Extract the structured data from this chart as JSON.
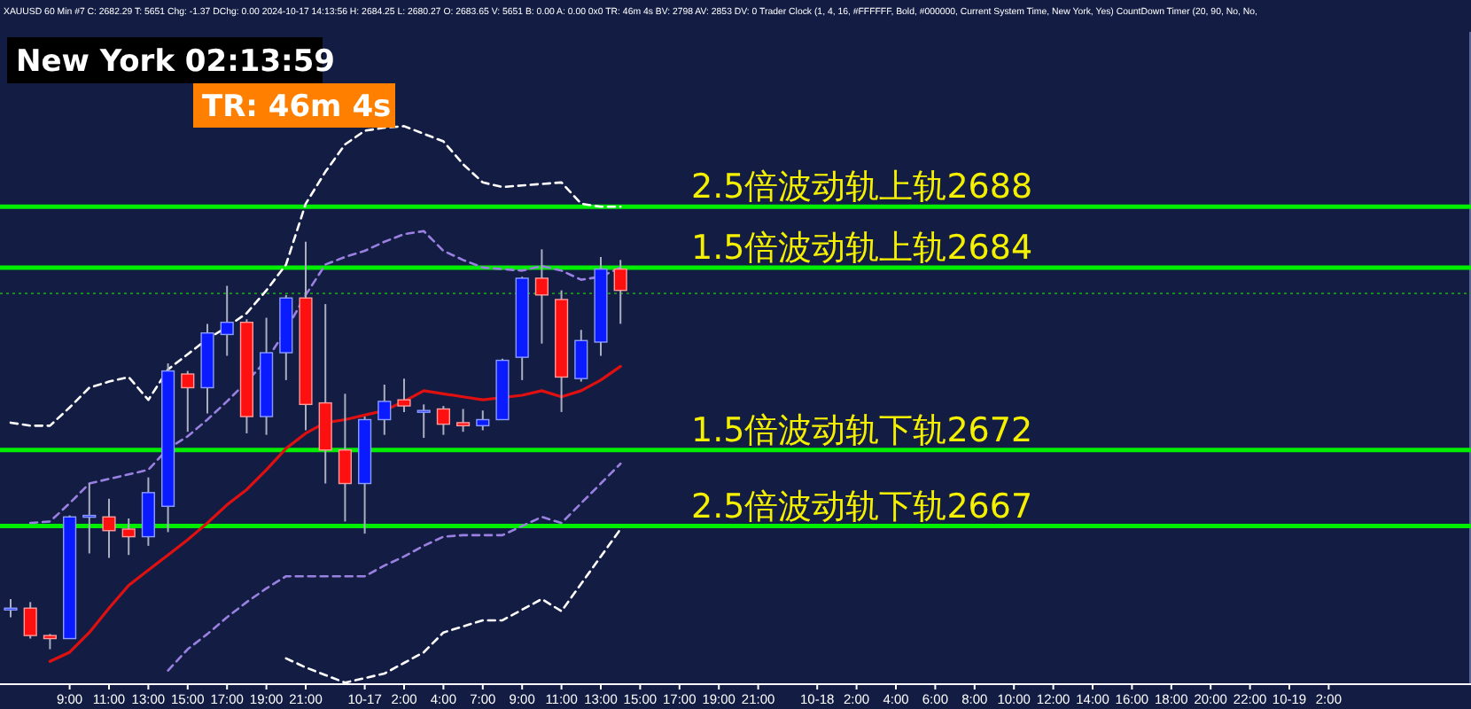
{
  "chart_data": {
    "type": "candlestick",
    "title": "XAUUSD  60 Min  #7 C: 2682.29 T: 5651 Chg: -1.37 DChg: 0.00 2024-10-17 14:13:56 H: 2684.25 L: 2680.27 O: 2683.65 V: 5651 B: 0.00 A: 0.00 0x0 TR: 46m 4s BV: 2798 AV: 2853 DV: 0 Trader Clock  (1, 4, 16, #FFFFFF, Bold, #000000, Current System Time, New York, Yes) CountDown Timer  (20, 90, No, No,",
    "annotations": [
      "New York 02:13:59",
      "TR: 46m 4s"
    ],
    "categories": [
      null,
      null,
      null,
      "9:00",
      null,
      "11:00",
      null,
      "13:00",
      null,
      "15:00",
      null,
      "17:00",
      null,
      "19:00",
      null,
      "21:00",
      null,
      null,
      "10-17",
      null,
      "2:00",
      null,
      "4:00",
      null,
      "7:00",
      null,
      "9:00",
      null,
      "11:00",
      null,
      "13:00",
      null,
      "15:00",
      null,
      "17:00",
      null,
      "19:00",
      null,
      "21:00",
      null,
      null,
      "10-18",
      null,
      "2:00",
      null,
      "4:00",
      null,
      "6:00",
      null,
      "8:00",
      null,
      "10:00",
      null,
      "12:00",
      null,
      "14:00",
      null,
      "16:00",
      null,
      "18:00",
      null,
      "20:00",
      null,
      "22:00",
      null,
      "10-19",
      null,
      "2:00",
      null,
      null,
      null,
      null,
      null,
      null,
      null
    ],
    "ohlc": [
      [
        2661.6,
        2662.2,
        2661.0,
        2661.6
      ],
      [
        2661.6,
        2662.0,
        2659.6,
        2659.8
      ],
      [
        2659.8,
        2659.9,
        2658.9,
        2659.6
      ],
      [
        2659.6,
        2667.7,
        2659.6,
        2667.6
      ],
      [
        2667.7,
        2669.8,
        2665.2,
        2667.7
      ],
      [
        2667.6,
        2668.8,
        2664.9,
        2666.7
      ],
      [
        2666.8,
        2667.5,
        2665.1,
        2666.3
      ],
      [
        2666.3,
        2670.2,
        2665.7,
        2669.2
      ],
      [
        2668.3,
        2677.7,
        2666.6,
        2677.2
      ],
      [
        2677.0,
        2677.2,
        2673.2,
        2676.1
      ],
      [
        2676.1,
        2680.3,
        2674.4,
        2679.7
      ],
      [
        2679.6,
        2682.8,
        2678.2,
        2680.4
      ],
      [
        2680.4,
        2680.6,
        2673.1,
        2674.2
      ],
      [
        2674.2,
        2680.7,
        2673.0,
        2678.4
      ],
      [
        2678.4,
        2682.2,
        2676.6,
        2682.0
      ],
      [
        2682.0,
        2685.7,
        2673.3,
        2675.0
      ],
      [
        2675.1,
        2681.6,
        2669.8,
        2672.0
      ],
      [
        2672.0,
        2675.7,
        2667.3,
        2669.8
      ],
      [
        2669.8,
        2674.2,
        2666.5,
        2674.0
      ],
      [
        2674.0,
        2676.3,
        2673.0,
        2675.2
      ],
      [
        2675.3,
        2676.7,
        2674.5,
        2674.9
      ],
      [
        2674.6,
        2675.0,
        2672.8,
        2674.6
      ],
      [
        2674.7,
        2674.9,
        2673.0,
        2673.7
      ],
      [
        2673.8,
        2674.7,
        2673.2,
        2673.6
      ],
      [
        2673.6,
        2674.6,
        2673.3,
        2674.0
      ],
      [
        2674.0,
        2678.0,
        2674.0,
        2677.9
      ],
      [
        2678.1,
        2683.4,
        2676.6,
        2683.3
      ],
      [
        2683.3,
        2685.2,
        2679.0,
        2682.2
      ],
      [
        2681.9,
        2682.5,
        2674.5,
        2676.8
      ],
      [
        2676.7,
        2679.9,
        2676.5,
        2679.2
      ],
      [
        2679.1,
        2684.7,
        2678.2,
        2683.9
      ],
      [
        2683.9,
        2684.5,
        2680.3,
        2682.5
      ],
      null,
      null,
      null,
      null,
      null,
      null,
      null,
      null,
      null,
      null,
      null,
      null,
      null,
      null,
      null,
      null,
      null,
      null,
      null,
      null,
      null,
      null,
      null,
      null,
      null,
      null,
      null,
      null,
      null,
      null,
      null,
      null,
      null,
      null,
      null,
      null,
      null,
      null,
      null,
      null,
      null,
      null,
      null
    ],
    "series": [
      {
        "type": "line",
        "color": "#e01010",
        "line_style": "solid",
        "values": [
          null,
          null,
          2658.1,
          2658.7,
          2660.0,
          2661.6,
          2663.1,
          2664.1,
          2665.1,
          2666.1,
          2667.2,
          2668.4,
          2669.4,
          2670.7,
          2672.1,
          2673.1,
          2673.8,
          2674.0,
          2674.3,
          2674.6,
          2675.2,
          2675.9,
          2675.7,
          2675.5,
          2675.3,
          null,
          2675.6,
          2675.9,
          2675.5,
          2675.9,
          2676.6,
          2677.5,
          null,
          null,
          null,
          null,
          null,
          null,
          null,
          null,
          null,
          null,
          null,
          null,
          null,
          null,
          null,
          null,
          null,
          null,
          null,
          null,
          null,
          null,
          null,
          null,
          null,
          null,
          null,
          null,
          null,
          null,
          null,
          null,
          null,
          null,
          null,
          null,
          null,
          null,
          null,
          null,
          null,
          null,
          null
        ]
      },
      {
        "type": "line",
        "color": "#9a80e0",
        "line_style": "dashed",
        "values": [
          null,
          2667.2,
          2667.3,
          2668.5,
          2669.8,
          2670.1,
          2670.4,
          2670.7,
          2672.1,
          2672.9,
          2674.0,
          2675.2,
          2676.5,
          2677.9,
          2679.9,
          2682.2,
          2684.2,
          2684.7,
          2685.1,
          2685.7,
          2686.2,
          2686.4,
          2685.1,
          2684.5,
          2684.0,
          2683.9,
          2683.8,
          2684.1,
          2683.8,
          2683.2,
          2683.4,
          2684.0,
          null,
          null,
          null,
          null,
          null,
          null,
          null,
          null,
          null,
          null,
          null,
          null,
          null,
          null,
          null,
          null,
          null,
          null,
          null,
          null,
          null,
          null,
          null,
          null,
          null,
          null,
          null,
          null,
          null,
          null,
          null,
          null,
          null,
          null,
          null,
          null,
          null,
          null,
          null,
          null,
          null,
          null,
          null
        ]
      },
      {
        "type": "line",
        "color": "#9a80e0",
        "line_style": "dashed",
        "values": [
          null,
          null,
          null,
          null,
          null,
          null,
          null,
          null,
          2657.5,
          2658.9,
          2659.9,
          2661.0,
          2662.0,
          2662.9,
          2663.7,
          2663.7,
          2663.7,
          2663.7,
          2663.7,
          2664.4,
          2665.0,
          2665.7,
          2666.3,
          2666.4,
          2666.4,
          2666.4,
          2667.0,
          2667.6,
          2667.2,
          2668.5,
          2669.8,
          2671.1,
          null,
          null,
          null,
          null,
          null,
          null,
          null,
          null,
          null,
          null,
          null,
          null,
          null,
          null,
          null,
          null,
          null,
          null,
          null,
          null,
          null,
          null,
          null,
          null,
          null,
          null,
          null,
          null,
          null,
          null,
          null,
          null,
          null,
          null,
          null,
          null,
          null,
          null,
          null,
          null,
          null,
          null,
          null
        ]
      },
      {
        "type": "line",
        "color": "#ffffff",
        "line_style": "dashed",
        "values": [
          2673.8,
          2673.6,
          2673.6,
          2674.8,
          2676.1,
          2676.5,
          2676.8,
          2675.3,
          2677.3,
          2678.3,
          2679.3,
          2680.1,
          2681.0,
          2682.5,
          2684.2,
          2688.2,
          2690.3,
          2692.1,
          2693.0,
          2693.2,
          2693.3,
          2692.8,
          2692.3,
          2690.8,
          2689.6,
          2689.3,
          2689.4,
          2689.5,
          2689.6,
          2688.2,
          2688.0,
          2688.0,
          null,
          null,
          null,
          null,
          null,
          null,
          null,
          null,
          null,
          null,
          null,
          null,
          null,
          null,
          null,
          null,
          null,
          null,
          null,
          null,
          null,
          null,
          null,
          null,
          null,
          null,
          null,
          null,
          null,
          null,
          null,
          null,
          null,
          null,
          null,
          null,
          null,
          null,
          null,
          null,
          null,
          null,
          null
        ]
      },
      {
        "type": "line",
        "color": "#ffffff",
        "line_style": "dashed",
        "values": [
          null,
          null,
          null,
          null,
          null,
          null,
          null,
          null,
          null,
          null,
          null,
          null,
          null,
          null,
          2658.3,
          2657.7,
          2657.2,
          2656.7,
          2657.0,
          2657.3,
          2658.0,
          2658.7,
          2660.0,
          2660.4,
          2660.8,
          2660.8,
          2661.5,
          2662.2,
          2661.4,
          2663.2,
          2665.0,
          2666.8,
          null,
          null,
          null,
          null,
          null,
          null,
          null,
          null,
          null,
          null,
          null,
          null,
          null,
          null,
          null,
          null,
          null,
          null,
          null,
          null,
          null,
          null,
          null,
          null,
          null,
          null,
          null,
          null,
          null,
          null,
          null,
          null,
          null,
          null,
          null,
          null,
          null,
          null,
          null,
          null,
          null,
          null,
          null
        ]
      }
    ],
    "ref_lines": [
      {
        "axis": "y",
        "value": 2688,
        "label": "2.5倍波动轨上轨2688",
        "color": "#00ee00"
      },
      {
        "axis": "y",
        "value": 2684,
        "label": "1.5倍波动轨上轨2684",
        "color": "#00ee00"
      },
      {
        "axis": "y",
        "value": 2672,
        "label": "1.5倍波动轨下轨2672",
        "color": "#00ee00"
      },
      {
        "axis": "y",
        "value": 2667,
        "label": "2.5倍波动轨下轨2667",
        "color": "#00ee00"
      },
      {
        "axis": "y",
        "value": 2682.3,
        "color": "#1a9a1a",
        "line_style": "dotted"
      }
    ],
    "ylim": [
      2656.6,
      2699.5
    ],
    "tick_labels": "x",
    "grid": false,
    "marker": "none"
  }
}
